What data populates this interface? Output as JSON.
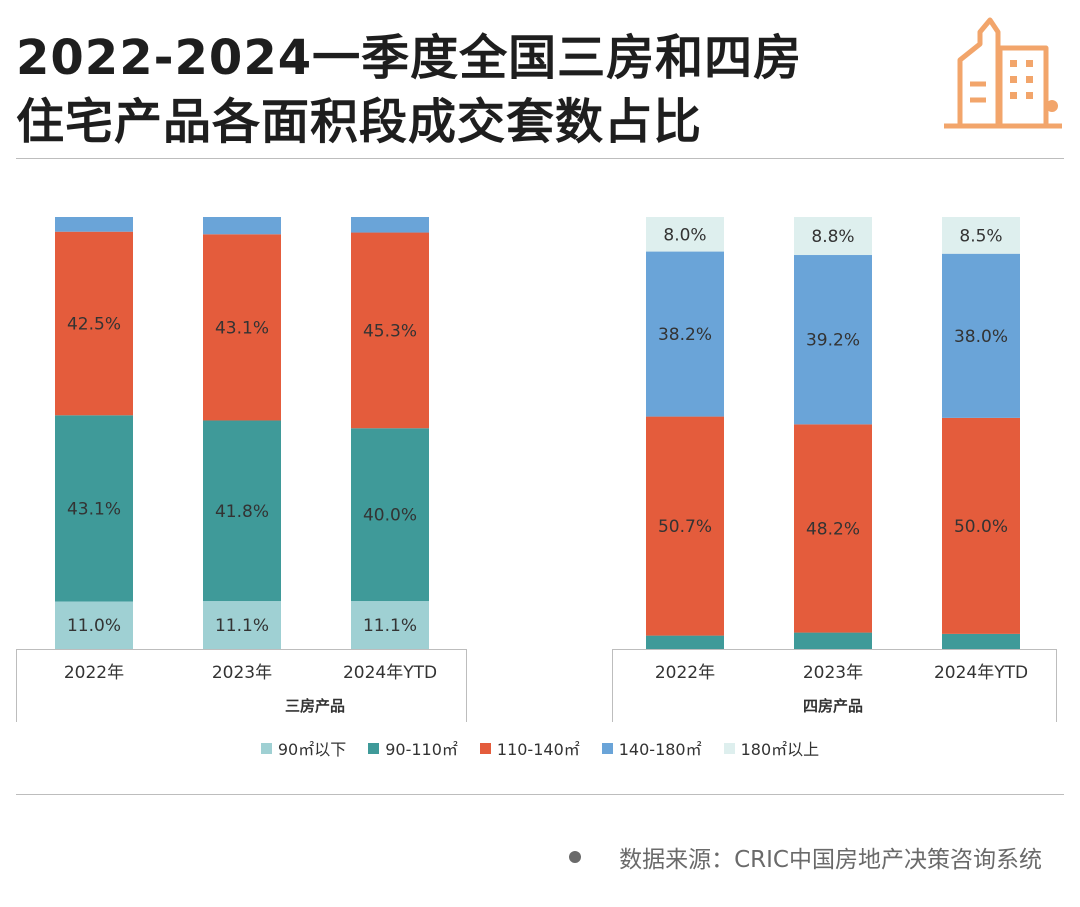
{
  "title": {
    "line1": "2022-2024一季度全国三房和四房",
    "line2": "住宅产品各面积段成交套数占比"
  },
  "source": "数据来源：CRIC中国房地产决策咨询系统",
  "colors": {
    "below90": "#9fd0d3",
    "s90_110": "#3f9a99",
    "s110_140": "#e45c3c",
    "s140_180": "#6aa4d8",
    "above180": "#deefee",
    "logo": "#f2a56b"
  },
  "chart_data": {
    "type": "bar",
    "stacked": true,
    "normalized": true,
    "ylim": [
      0,
      100
    ],
    "legend_position": "bottom",
    "series_names": [
      "90㎡以下",
      "90-110㎡",
      "110-140㎡",
      "140-180㎡",
      "180㎡以上"
    ],
    "groups": [
      {
        "name": "三房产品",
        "categories": [
          "2022年",
          "2023年",
          "2024年YTD"
        ],
        "series": [
          {
            "name": "90㎡以下",
            "values": [
              11.0,
              11.1,
              11.1
            ]
          },
          {
            "name": "90-110㎡",
            "values": [
              43.1,
              41.8,
              40.0
            ]
          },
          {
            "name": "110-140㎡",
            "values": [
              42.5,
              43.1,
              45.3
            ]
          },
          {
            "name": "140-180㎡",
            "values": [
              3.4,
              4.0,
              3.6
            ]
          },
          {
            "name": "180㎡以上",
            "values": [
              0,
              0,
              0
            ]
          }
        ],
        "shown_labels": [
          "90㎡以下",
          "90-110㎡",
          "110-140㎡"
        ]
      },
      {
        "name": "四房产品",
        "categories": [
          "2022年",
          "2023年",
          "2024年YTD"
        ],
        "series": [
          {
            "name": "90㎡以下",
            "values": [
              0,
              0,
              0
            ]
          },
          {
            "name": "90-110㎡",
            "values": [
              3.1,
              3.8,
              3.5
            ]
          },
          {
            "name": "110-140㎡",
            "values": [
              50.7,
              48.2,
              50.0
            ]
          },
          {
            "name": "140-180㎡",
            "values": [
              38.2,
              39.2,
              38.0
            ]
          },
          {
            "name": "180㎡以上",
            "values": [
              8.0,
              8.8,
              8.5
            ]
          }
        ],
        "shown_labels": [
          "110-140㎡",
          "140-180㎡",
          "180㎡以上"
        ]
      }
    ]
  }
}
